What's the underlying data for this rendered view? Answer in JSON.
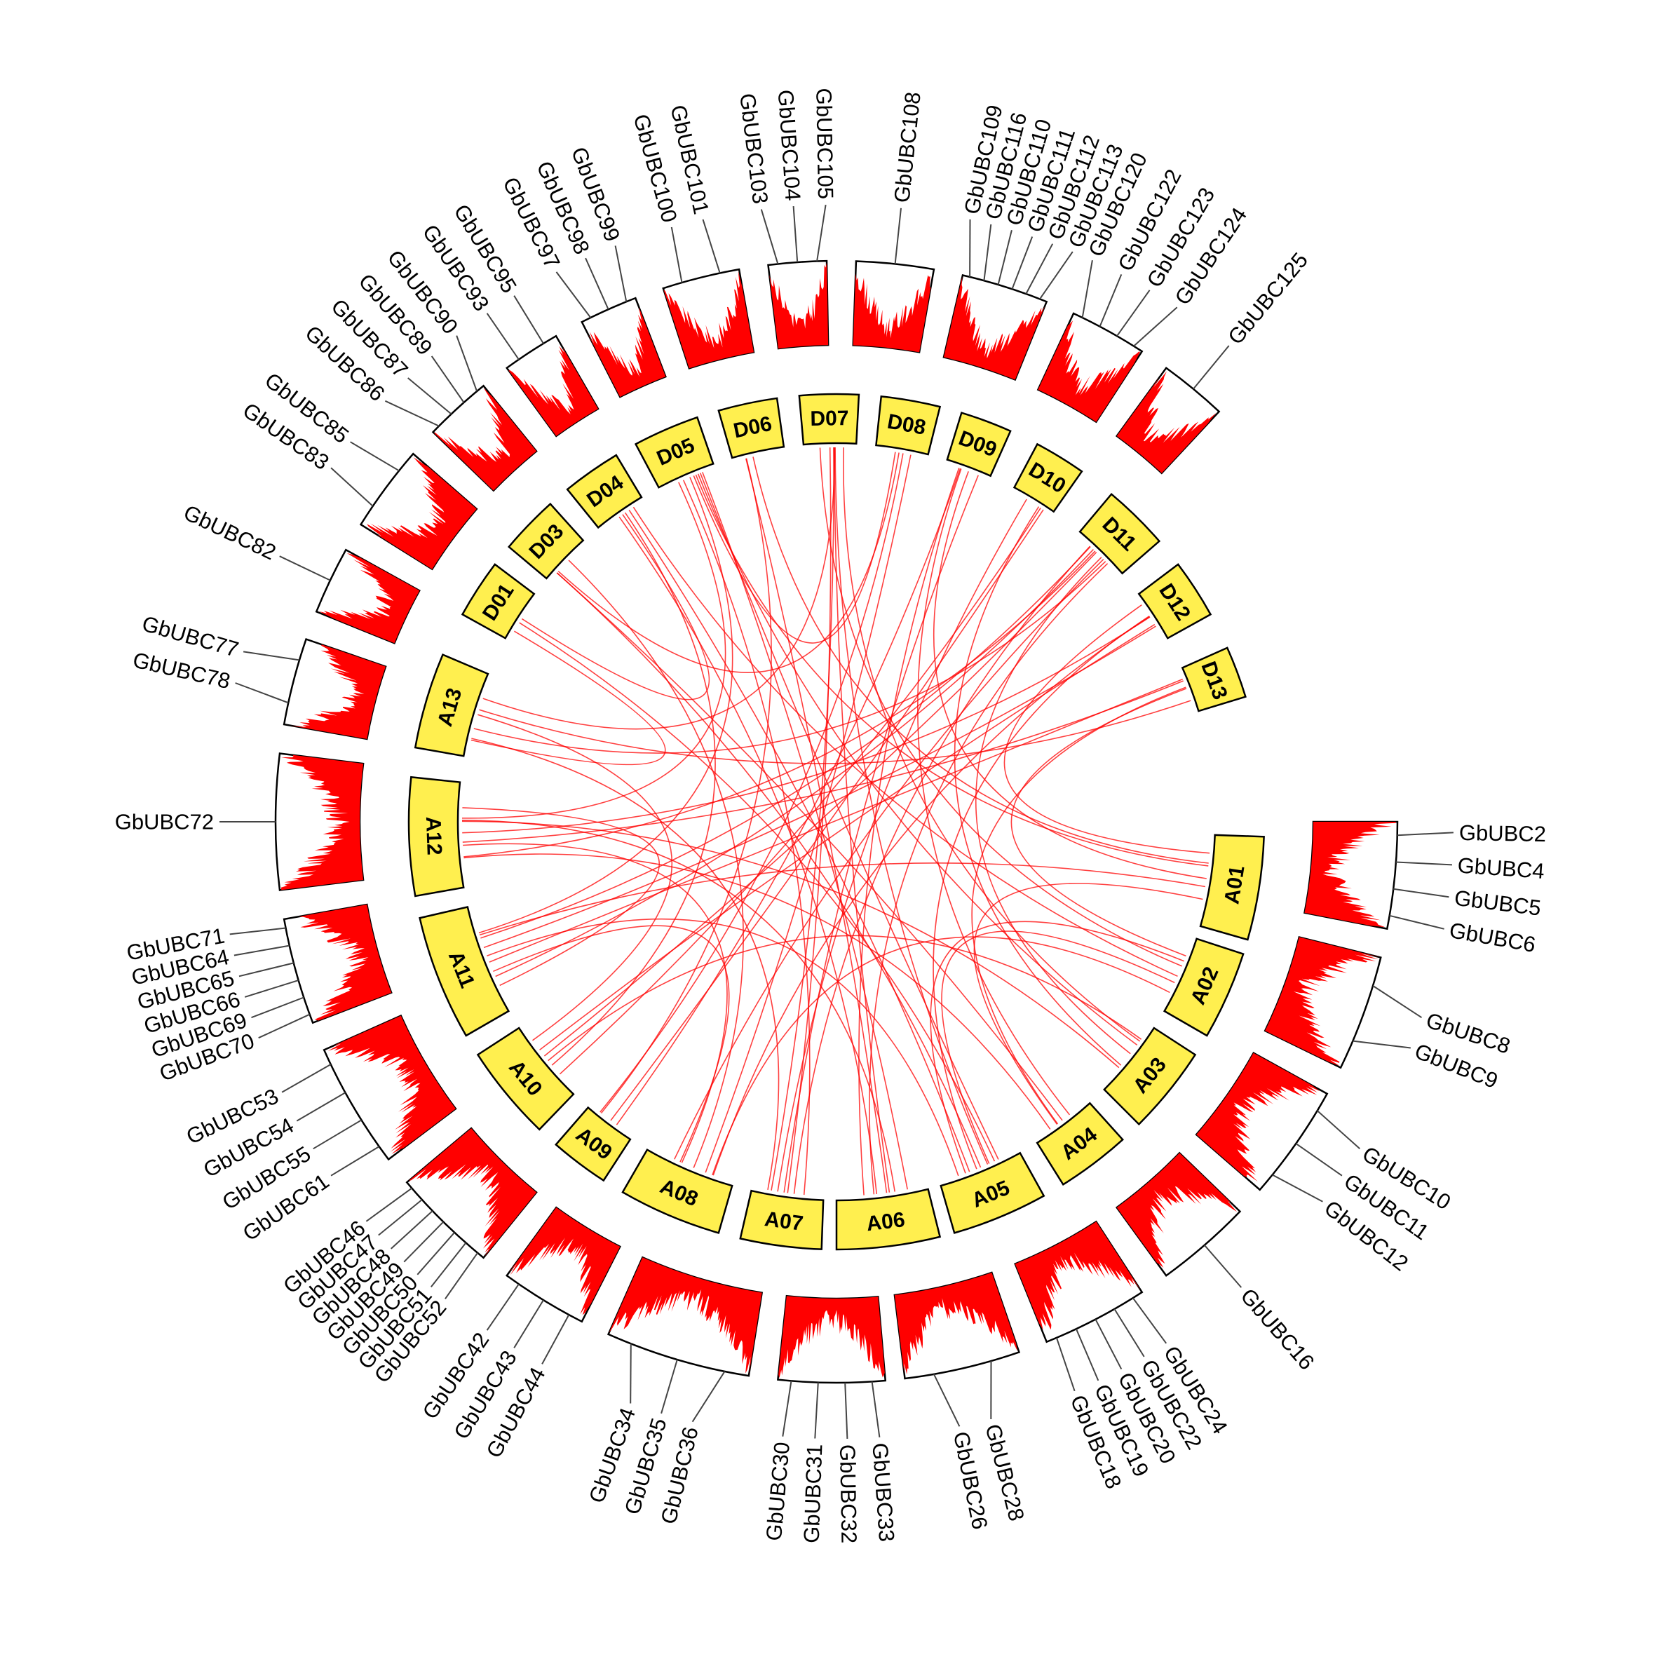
{
  "colors": {
    "chromosome_fill": "#ffef4f",
    "link": "#ff0000",
    "density": "#ff0000",
    "outline": "#000000",
    "leader": "#444444"
  },
  "chromosomes": [
    {
      "id": "A01",
      "label": "A01"
    },
    {
      "id": "A02",
      "label": "A02"
    },
    {
      "id": "A03",
      "label": "A03"
    },
    {
      "id": "A04",
      "label": "A04"
    },
    {
      "id": "A05",
      "label": "A05"
    },
    {
      "id": "A06",
      "label": "A06"
    },
    {
      "id": "A07",
      "label": "A07"
    },
    {
      "id": "A08",
      "label": "A08"
    },
    {
      "id": "A09",
      "label": "A09"
    },
    {
      "id": "A10",
      "label": "A10"
    },
    {
      "id": "A11",
      "label": "A11"
    },
    {
      "id": "A12",
      "label": "A12"
    },
    {
      "id": "A13",
      "label": "A13"
    },
    {
      "id": "D01",
      "label": "D01"
    },
    {
      "id": "D03",
      "label": "D03"
    },
    {
      "id": "D04",
      "label": "D04"
    },
    {
      "id": "D05",
      "label": "D05"
    },
    {
      "id": "D06",
      "label": "D06"
    },
    {
      "id": "D07",
      "label": "D07"
    },
    {
      "id": "D08",
      "label": "D08"
    },
    {
      "id": "D09",
      "label": "D09"
    },
    {
      "id": "D10",
      "label": "D10"
    },
    {
      "id": "D11",
      "label": "D11"
    },
    {
      "id": "D12",
      "label": "D12"
    },
    {
      "id": "D13",
      "label": "D13"
    }
  ],
  "gene_groups": [
    {
      "chr": "A01",
      "genes": [
        "GbUBC2",
        "GbUBC4",
        "GbUBC5",
        "GbUBC6"
      ]
    },
    {
      "chr": "A02",
      "genes": [
        "GbUBC8",
        "GbUBC9"
      ]
    },
    {
      "chr": "A03",
      "genes": [
        "GbUBC10",
        "GbUBC11",
        "GbUBC12"
      ]
    },
    {
      "chr": "A04",
      "genes": [
        "GbUBC16"
      ]
    },
    {
      "chr": "A05",
      "genes": [
        "GbUBC24",
        "GbUBC22",
        "GbUBC20",
        "GbUBC19",
        "GbUBC18"
      ]
    },
    {
      "chr": "A06",
      "genes": [
        "GbUBC28",
        "GbUBC26"
      ]
    },
    {
      "chr": "A07",
      "genes": [
        "GbUBC33",
        "GbUBC32",
        "GbUBC31",
        "GbUBC30"
      ]
    },
    {
      "chr": "A08",
      "genes": [
        "GbUBC36",
        "GbUBC35",
        "GbUBC34"
      ]
    },
    {
      "chr": "A09",
      "genes": [
        "GbUBC44",
        "GbUBC43",
        "GbUBC42"
      ]
    },
    {
      "chr": "A10",
      "genes": [
        "GbUBC52",
        "GbUBC51",
        "GbUBC50",
        "GbUBC49",
        "GbUBC48",
        "GbUBC47",
        "GbUBC46"
      ]
    },
    {
      "chr": "A11",
      "genes": [
        "GbUBC61",
        "GbUBC55",
        "GbUBC54",
        "GbUBC53"
      ]
    },
    {
      "chr": "A12",
      "genes": [
        "GbUBC70",
        "GbUBC69",
        "GbUBC66",
        "GbUBC65",
        "GbUBC64",
        "GbUBC71"
      ]
    },
    {
      "chr": "A13",
      "genes": [
        "GbUBC72"
      ]
    },
    {
      "chr": "D01",
      "genes": [
        "GbUBC78",
        "GbUBC77"
      ]
    },
    {
      "chr": "D03",
      "genes": [
        "GbUBC82"
      ]
    },
    {
      "chr": "D04",
      "genes": [
        "GbUBC83",
        "GbUBC85"
      ]
    },
    {
      "chr": "D05",
      "genes": [
        "GbUBC86",
        "GbUBC87",
        "GbUBC89",
        "GbUBC90"
      ]
    },
    {
      "chr": "D06",
      "genes": [
        "GbUBC93",
        "GbUBC95"
      ]
    },
    {
      "chr": "D07",
      "genes": [
        "GbUBC97",
        "GbUBC98",
        "GbUBC99"
      ]
    },
    {
      "chr": "D08",
      "genes": [
        "GbUBC100",
        "GbUBC101"
      ]
    },
    {
      "chr": "D09",
      "genes": [
        "GbUBC103",
        "GbUBC104",
        "GbUBC105"
      ]
    },
    {
      "chr": "D10",
      "genes": [
        "GbUBC108"
      ]
    },
    {
      "chr": "D11",
      "genes": [
        "GbUBC109",
        "GbUBC116",
        "GbUBC110",
        "GbUBC111",
        "GbUBC112",
        "GbUBC113"
      ]
    },
    {
      "chr": "D12",
      "genes": [
        "GbUBC120",
        "GbUBC122",
        "GbUBC123",
        "GbUBC124"
      ]
    },
    {
      "chr": "D13",
      "genes": [
        "GbUBC125"
      ]
    }
  ],
  "links": [
    [
      "A01",
      "D12"
    ],
    [
      "A01",
      "A11"
    ],
    [
      "A01",
      "D05"
    ],
    [
      "A01",
      "A04"
    ],
    [
      "A01",
      "D09"
    ],
    [
      "A02",
      "D13"
    ],
    [
      "A02",
      "A05"
    ],
    [
      "A02",
      "D07"
    ],
    [
      "A02",
      "A08"
    ],
    [
      "A02",
      "D04"
    ],
    [
      "A03",
      "D05"
    ],
    [
      "A03",
      "A12"
    ],
    [
      "A03",
      "D11"
    ],
    [
      "A03",
      "A10"
    ],
    [
      "A04",
      "D13"
    ],
    [
      "A04",
      "D09"
    ],
    [
      "A04",
      "A12"
    ],
    [
      "A04",
      "D03"
    ],
    [
      "A05",
      "D05"
    ],
    [
      "A05",
      "D04"
    ],
    [
      "A05",
      "D07"
    ],
    [
      "A05",
      "A11"
    ],
    [
      "A05",
      "D12"
    ],
    [
      "A05",
      "D01"
    ],
    [
      "A05",
      "A02"
    ],
    [
      "A06",
      "D06"
    ],
    [
      "A06",
      "D05"
    ],
    [
      "A06",
      "D11"
    ],
    [
      "A06",
      "A12"
    ],
    [
      "A07",
      "D07"
    ],
    [
      "A07",
      "D07"
    ],
    [
      "A07",
      "D05"
    ],
    [
      "A07",
      "D10"
    ],
    [
      "A07",
      "D11"
    ],
    [
      "A07",
      "A13"
    ],
    [
      "A07",
      "D09"
    ],
    [
      "A08",
      "D08"
    ],
    [
      "A08",
      "D11"
    ],
    [
      "A08",
      "D03"
    ],
    [
      "A08",
      "D12"
    ],
    [
      "A08",
      "A12"
    ],
    [
      "A09",
      "D09"
    ],
    [
      "A09",
      "D06"
    ],
    [
      "A09",
      "D10"
    ],
    [
      "A10",
      "D10"
    ],
    [
      "A10",
      "D12"
    ],
    [
      "A10",
      "D04"
    ],
    [
      "A10",
      "A13"
    ],
    [
      "A10",
      "D11"
    ],
    [
      "A11",
      "D11"
    ],
    [
      "A11",
      "D11"
    ],
    [
      "A11",
      "D13"
    ],
    [
      "A11",
      "A12"
    ],
    [
      "A11",
      "D12"
    ],
    [
      "A11",
      "A08"
    ],
    [
      "A11",
      "D05"
    ],
    [
      "A12",
      "D12"
    ],
    [
      "A12",
      "D11"
    ],
    [
      "A12",
      "D05"
    ],
    [
      "A12",
      "D13"
    ],
    [
      "A13",
      "D01"
    ],
    [
      "A13",
      "D13"
    ],
    [
      "A13",
      "D11"
    ],
    [
      "A13",
      "D07"
    ],
    [
      "D01",
      "D04"
    ],
    [
      "D03",
      "D08"
    ],
    [
      "D05",
      "D08"
    ],
    [
      "D06",
      "A01"
    ],
    [
      "D07",
      "A03"
    ],
    [
      "D08",
      "A09"
    ],
    [
      "D09",
      "A06"
    ],
    [
      "D10",
      "A03"
    ],
    [
      "D04",
      "A06"
    ],
    [
      "D03",
      "A05"
    ],
    [
      "D07",
      "A06"
    ]
  ]
}
